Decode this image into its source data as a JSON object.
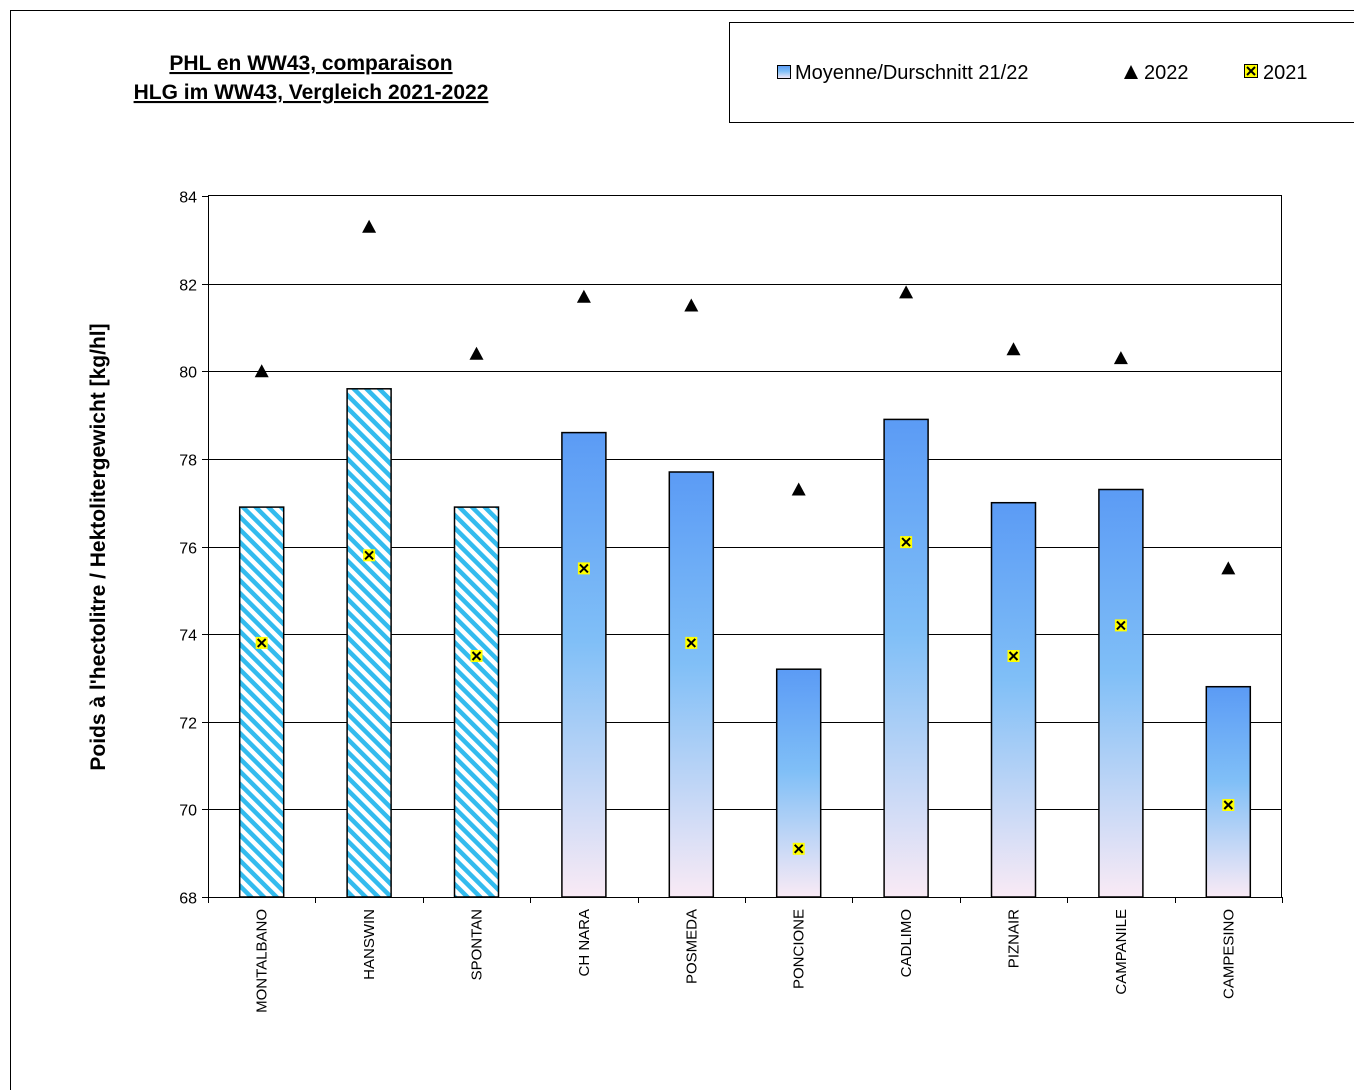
{
  "chart_data": {
    "type": "bar",
    "title_lines": [
      "PHL en WW43, comparaison",
      "HLG im WW43, Vergleich 2021-2022"
    ],
    "ylabel": "Poids à l'hectolitre / Hektolitergewicht [kg/hl]",
    "xlabel": "",
    "ylim": [
      68,
      84
    ],
    "yticks": [
      68,
      70,
      72,
      74,
      76,
      78,
      80,
      82,
      84
    ],
    "grid": true,
    "legend_position": "top-right",
    "categories": [
      "MONTALBANO",
      "HANSWIN",
      "SPONTAN",
      "CH NARA",
      "POSMEDA",
      "PONCIONE",
      "CADLIMO",
      "PIZNAIR",
      "CAMPANILE",
      "CAMPESINO"
    ],
    "hatched_categories": [
      "MONTALBANO",
      "HANSWIN",
      "SPONTAN"
    ],
    "series": [
      {
        "name": "Moyenne/Durschnitt 21/22",
        "kind": "bar",
        "values": [
          76.9,
          79.6,
          76.9,
          78.6,
          77.7,
          73.2,
          78.9,
          77.0,
          77.3,
          72.8
        ]
      },
      {
        "name": "2022",
        "kind": "marker-triangle",
        "values": [
          80.0,
          83.3,
          80.4,
          81.7,
          81.5,
          77.3,
          81.8,
          80.5,
          80.3,
          75.5
        ]
      },
      {
        "name": "2021",
        "kind": "marker-x",
        "values": [
          73.8,
          75.8,
          73.5,
          75.5,
          73.8,
          69.1,
          76.1,
          73.5,
          74.2,
          70.1
        ]
      }
    ],
    "colors": {
      "bar_top": "#5b9bf5",
      "bar_mid": "#80bff7",
      "bar_bottom": "#f9eaf5",
      "hatch_light": "#ffffff",
      "hatch_dark": "#33bbee",
      "marker_2021": "#ffff00",
      "marker_2022": "#000000"
    }
  }
}
